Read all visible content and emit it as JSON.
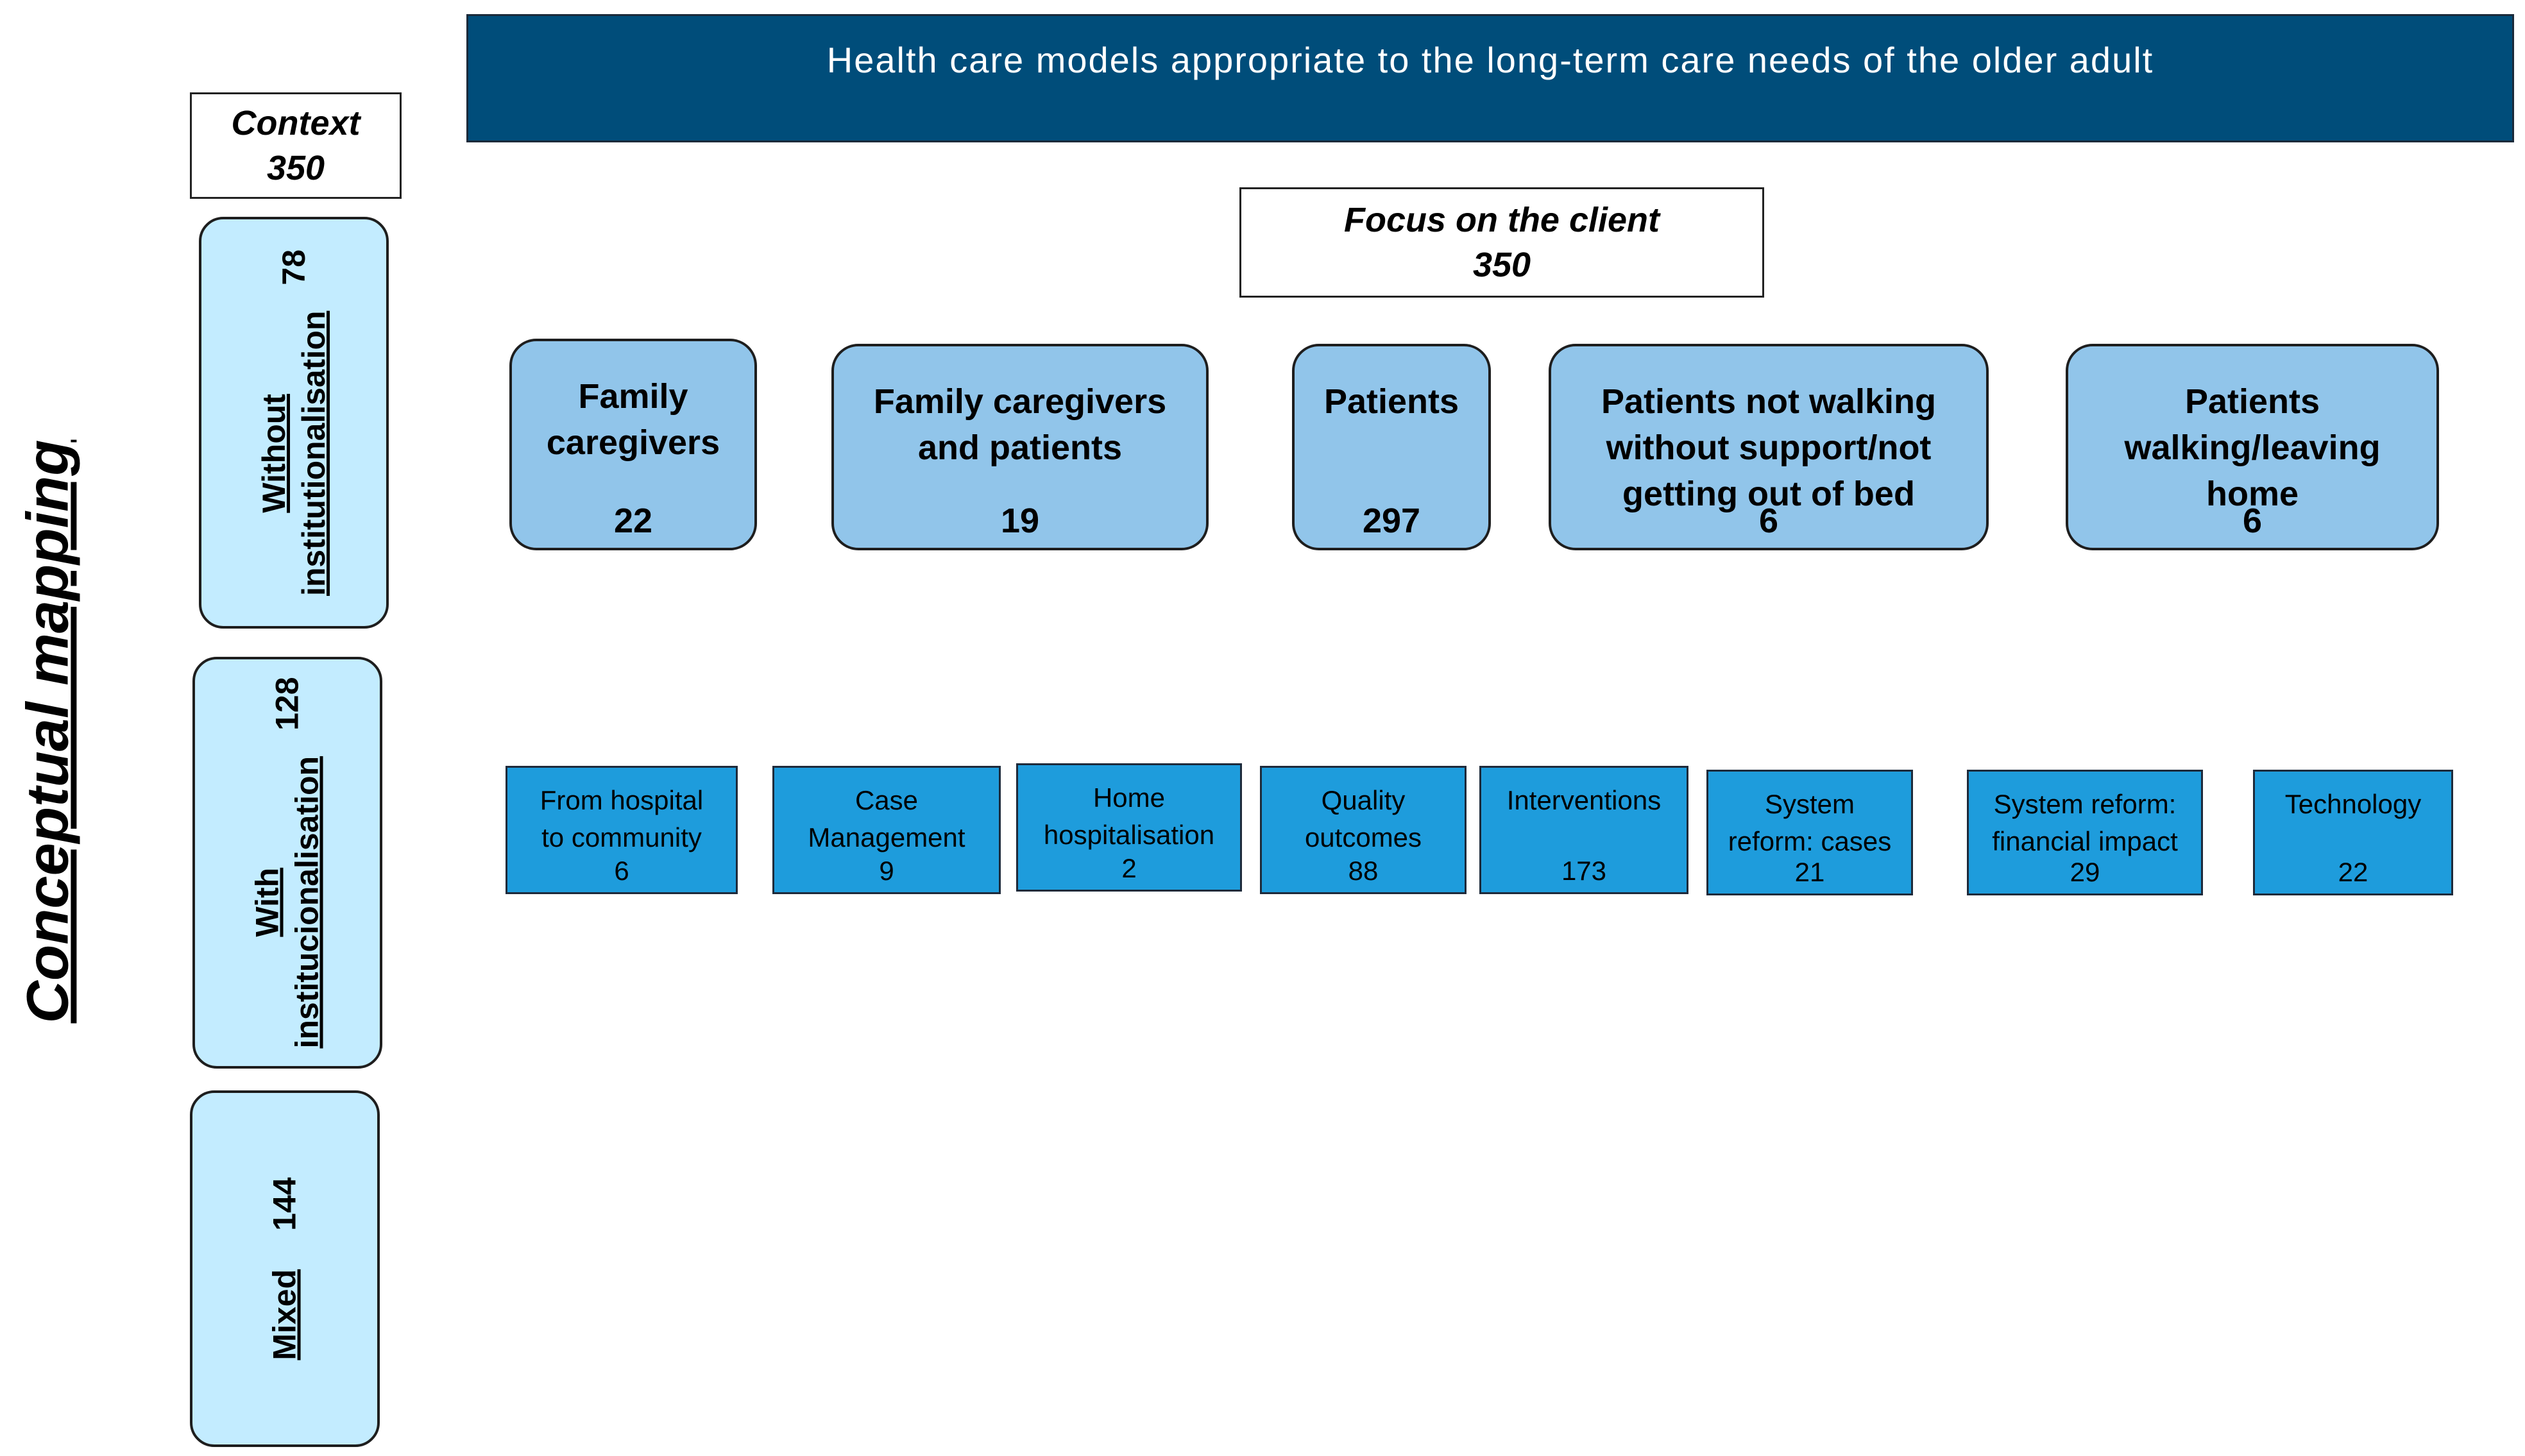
{
  "title": "Health care models appropriate to the long-term care needs of the older adult",
  "side_title": "Conceptual mapping",
  "context": {
    "label": "Context",
    "count": "350"
  },
  "categories": [
    {
      "label_line1": "Without",
      "label_line2": "institutionalisation",
      "count": "78"
    },
    {
      "label_line1": "With",
      "label_line2": "institucionalisation",
      "count": "128"
    },
    {
      "label_line1": "Mixed",
      "label_line2": "",
      "count": "144"
    }
  ],
  "focus": {
    "label": "Focus on the client",
    "count": "350"
  },
  "clients": [
    {
      "line1": "Family",
      "line2": "caregivers",
      "line3": "",
      "count": "22"
    },
    {
      "line1": "Family caregivers",
      "line2": "and patients",
      "line3": "",
      "count": "19"
    },
    {
      "line1": "Patients",
      "line2": "",
      "line3": "",
      "count": "297"
    },
    {
      "line1": "Patients not walking",
      "line2": "without support/not",
      "line3": "getting out of bed",
      "count": "6"
    },
    {
      "line1": "Patients",
      "line2": "walking/leaving",
      "line3": "home",
      "count": "6"
    }
  ],
  "topics": [
    {
      "line1": "From hospital",
      "line2": "to community",
      "count": "6"
    },
    {
      "line1": "Case",
      "line2": "Management",
      "count": "9"
    },
    {
      "line1": "Home",
      "line2": "hospitalisation",
      "count": "2"
    },
    {
      "line1": "Quality",
      "line2": "outcomes",
      "count": "88"
    },
    {
      "line1": "Interventions",
      "line2": "",
      "count": "173"
    },
    {
      "line1": "System",
      "line2": "reform: cases",
      "count": "21"
    },
    {
      "line1": "System reform:",
      "line2": "financial impact",
      "count": "29"
    },
    {
      "line1": "Technology",
      "line2": "",
      "count": "22"
    }
  ],
  "colors": {
    "banner": "#004d7a",
    "category_fill": "#c3ecff",
    "client_fill": "#91c5ea",
    "topic_fill": "#1e9cdc"
  }
}
